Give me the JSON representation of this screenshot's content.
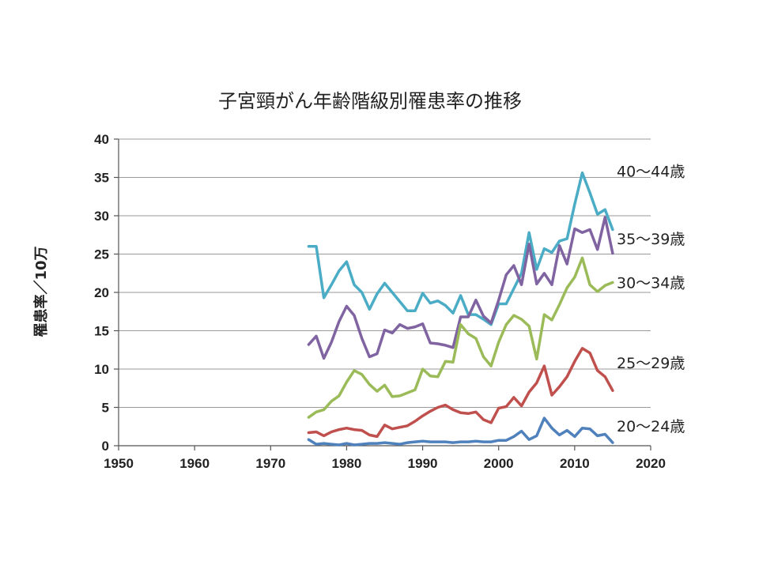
{
  "chart_data": {
    "type": "line",
    "title": "子宮頸がん年齢階級別罹患率の推移",
    "ylabel": "罹患率／10万",
    "xlim": [
      1950,
      2020
    ],
    "ylim": [
      0,
      40
    ],
    "xticks": [
      1950,
      1960,
      1970,
      1980,
      1990,
      2000,
      2010,
      2020
    ],
    "yticks": [
      0,
      5,
      10,
      15,
      20,
      25,
      30,
      35,
      40
    ],
    "grid": true,
    "series": [
      {
        "name": "40〜44歳",
        "color": "#4BACC6",
        "x": [
          1975,
          1976,
          1977,
          1978,
          1979,
          1980,
          1981,
          1982,
          1983,
          1984,
          1985,
          1986,
          1987,
          1988,
          1989,
          1990,
          1991,
          1992,
          1993,
          1994,
          1995,
          1996,
          1997,
          1998,
          1999,
          2000,
          2001,
          2002,
          2003,
          2004,
          2005,
          2006,
          2007,
          2008,
          2009,
          2010,
          2011,
          2012,
          2013,
          2014,
          2015
        ],
        "y": [
          26.0,
          26.0,
          19.3,
          21.0,
          22.8,
          24.0,
          21.0,
          20.0,
          17.8,
          19.8,
          21.2,
          20.0,
          18.8,
          17.6,
          17.6,
          19.9,
          18.6,
          18.9,
          18.3,
          17.3,
          19.6,
          17.1,
          17.1,
          16.5,
          15.8,
          18.5,
          18.5,
          20.5,
          22.5,
          27.8,
          23.0,
          25.7,
          25.2,
          26.7,
          27.0,
          31.5,
          35.6,
          33.0,
          30.2,
          30.8,
          28.2
        ]
      },
      {
        "name": "35〜39歳",
        "color": "#8064A2",
        "x": [
          1975,
          1976,
          1977,
          1978,
          1979,
          1980,
          1981,
          1982,
          1983,
          1984,
          1985,
          1986,
          1987,
          1988,
          1989,
          1990,
          1991,
          1992,
          1993,
          1994,
          1995,
          1996,
          1997,
          1998,
          1999,
          2000,
          2001,
          2002,
          2003,
          2004,
          2005,
          2006,
          2007,
          2008,
          2009,
          2010,
          2011,
          2012,
          2013,
          2014,
          2015
        ],
        "y": [
          13.2,
          14.3,
          11.4,
          13.5,
          16.2,
          18.2,
          17.0,
          14.0,
          11.6,
          12.0,
          15.1,
          14.7,
          15.8,
          15.3,
          15.5,
          15.9,
          13.4,
          13.3,
          13.1,
          12.8,
          16.8,
          16.8,
          19.0,
          16.9,
          16.0,
          19.0,
          22.3,
          23.5,
          21.0,
          26.3,
          21.1,
          22.5,
          21.0,
          26.1,
          23.7,
          28.3,
          27.8,
          28.2,
          25.6,
          29.8,
          25.1
        ]
      },
      {
        "name": "30〜34歳",
        "color": "#9BBB59",
        "x": [
          1975,
          1976,
          1977,
          1978,
          1979,
          1980,
          1981,
          1982,
          1983,
          1984,
          1985,
          1986,
          1987,
          1988,
          1989,
          1990,
          1991,
          1992,
          1993,
          1994,
          1995,
          1996,
          1997,
          1998,
          1999,
          2000,
          2001,
          2002,
          2003,
          2004,
          2005,
          2006,
          2007,
          2008,
          2009,
          2010,
          2011,
          2012,
          2013,
          2014,
          2015
        ],
        "y": [
          3.7,
          4.4,
          4.7,
          5.8,
          6.5,
          8.3,
          9.8,
          9.3,
          8.0,
          7.1,
          7.9,
          6.4,
          6.5,
          6.9,
          7.3,
          10.0,
          9.1,
          9.0,
          11.0,
          10.9,
          15.8,
          14.6,
          14.0,
          11.6,
          10.4,
          13.5,
          15.8,
          17.0,
          16.5,
          15.6,
          11.3,
          17.1,
          16.4,
          18.4,
          20.6,
          22.0,
          24.5,
          21.0,
          20.1,
          20.9,
          21.3
        ]
      },
      {
        "name": "25〜29歳",
        "color": "#C0504D",
        "x": [
          1975,
          1976,
          1977,
          1978,
          1979,
          1980,
          1981,
          1982,
          1983,
          1984,
          1985,
          1986,
          1987,
          1988,
          1989,
          1990,
          1991,
          1992,
          1993,
          1994,
          1995,
          1996,
          1997,
          1998,
          1999,
          2000,
          2001,
          2002,
          2003,
          2004,
          2005,
          2006,
          2007,
          2008,
          2009,
          2010,
          2011,
          2012,
          2013,
          2014,
          2015
        ],
        "y": [
          1.7,
          1.8,
          1.3,
          1.8,
          2.1,
          2.3,
          2.1,
          2.0,
          1.4,
          1.2,
          2.7,
          2.2,
          2.4,
          2.6,
          3.2,
          3.9,
          4.5,
          5.0,
          5.3,
          4.7,
          4.3,
          4.2,
          4.4,
          3.4,
          3.0,
          4.9,
          5.1,
          6.3,
          5.2,
          7.0,
          8.2,
          10.4,
          6.6,
          7.7,
          9.0,
          11.0,
          12.7,
          12.1,
          9.8,
          9.0,
          7.2
        ]
      },
      {
        "name": "20〜24歳",
        "color": "#4F81BD",
        "x": [
          1975,
          1976,
          1977,
          1978,
          1979,
          1980,
          1981,
          1982,
          1983,
          1984,
          1985,
          1986,
          1987,
          1988,
          1989,
          1990,
          1991,
          1992,
          1993,
          1994,
          1995,
          1996,
          1997,
          1998,
          1999,
          2000,
          2001,
          2002,
          2003,
          2004,
          2005,
          2006,
          2007,
          2008,
          2009,
          2010,
          2011,
          2012,
          2013,
          2014,
          2015
        ],
        "y": [
          0.8,
          0.2,
          0.3,
          0.2,
          0.1,
          0.3,
          0.1,
          0.2,
          0.3,
          0.3,
          0.4,
          0.3,
          0.2,
          0.4,
          0.5,
          0.6,
          0.5,
          0.5,
          0.5,
          0.4,
          0.5,
          0.5,
          0.6,
          0.5,
          0.5,
          0.7,
          0.7,
          1.2,
          1.9,
          0.8,
          1.3,
          3.6,
          2.3,
          1.4,
          2.0,
          1.2,
          2.3,
          2.2,
          1.3,
          1.5,
          0.4
        ]
      }
    ]
  }
}
